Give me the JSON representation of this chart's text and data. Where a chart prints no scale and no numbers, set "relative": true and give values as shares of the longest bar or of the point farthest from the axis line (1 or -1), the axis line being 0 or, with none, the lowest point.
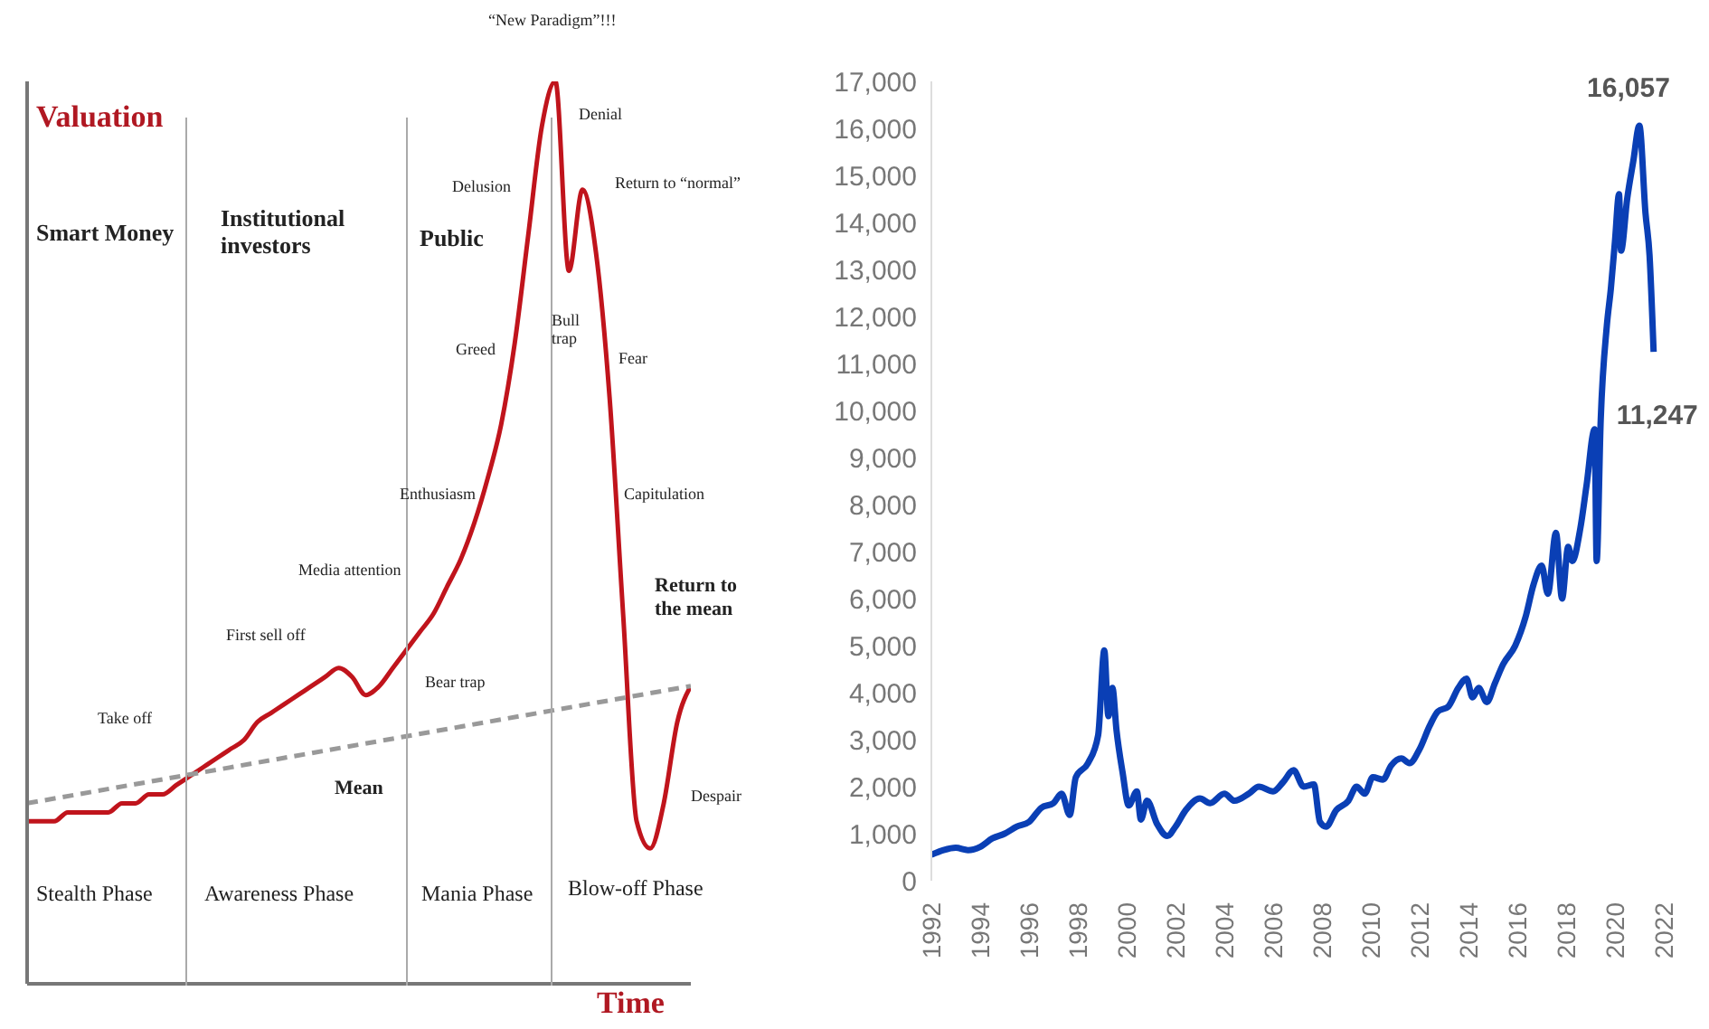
{
  "chart_data": [
    {
      "type": "line",
      "relative": true,
      "ylabel": "Valuation",
      "xlabel": "Time",
      "categories": [
        null,
        null,
        null,
        null,
        null,
        null,
        null,
        null,
        null,
        null,
        null,
        null,
        null,
        null,
        null,
        null,
        null,
        null,
        null,
        null,
        null,
        null,
        null,
        null,
        null,
        null,
        null,
        null,
        null,
        null,
        null,
        null,
        null,
        null,
        null,
        null,
        null,
        null,
        null,
        null,
        null,
        null,
        null,
        null,
        null,
        null,
        null,
        null,
        null,
        null
      ],
      "series": [
        {
          "color": "#c0141c",
          "values": [
            0.18,
            0.18,
            0.18,
            0.19,
            0.19,
            0.19,
            0.19,
            0.2,
            0.2,
            0.21,
            0.21,
            0.22,
            0.23,
            0.24,
            0.25,
            0.26,
            0.27,
            0.29,
            0.3,
            0.31,
            0.32,
            0.33,
            0.34,
            0.35,
            0.34,
            0.32,
            0.33,
            0.35,
            0.37,
            0.39,
            0.41,
            0.44,
            0.47,
            0.51,
            0.56,
            0.62,
            0.71,
            0.83,
            0.95,
            1,
            0.79,
            0.88,
            0.81,
            0.65,
            0.41,
            0.18,
            0.15,
            0.2,
            0.29,
            0.33
          ]
        },
        {
          "color": "#999999",
          "line_style": "dashed",
          "values": [
            0.2,
            null,
            null,
            null,
            null,
            null,
            null,
            null,
            null,
            null,
            null,
            null,
            null,
            null,
            null,
            null,
            null,
            null,
            null,
            null,
            null,
            null,
            null,
            null,
            null,
            null,
            null,
            null,
            null,
            null,
            null,
            null,
            null,
            null,
            null,
            null,
            null,
            null,
            null,
            null,
            null,
            null,
            null,
            null,
            null,
            null,
            null,
            null,
            null,
            0.33
          ]
        }
      ],
      "annotations": [
        "“New Paradigm”!!!",
        "Smart Money",
        "Institutional investors",
        "Public",
        "Delusion",
        "Denial",
        "Return to “normal”",
        "Greed",
        "Bull trap",
        "Fear",
        "Enthusiasm",
        "Capitulation",
        "Media attention",
        "First sell off",
        "Return to the mean",
        "Take off",
        "Bear trap",
        "Mean",
        "Despair",
        "Stealth Phase",
        "Awareness Phase",
        "Mania Phase",
        "Blow-off Phase"
      ]
    },
    {
      "type": "line",
      "xlim": [
        "1992",
        "2022"
      ],
      "xticks": [
        "1992",
        "1994",
        "1996",
        "1998",
        "2000",
        "2002",
        "2004",
        "2006",
        "2008",
        "2010",
        "2012",
        "2014",
        "2016",
        "2018",
        "2020",
        "2022"
      ],
      "ylim": [
        0,
        17000
      ],
      "yticks": [
        0,
        {
          "value": 1000,
          "label": "1,000"
        },
        {
          "value": 2000,
          "label": "2,000"
        },
        {
          "value": 3000,
          "label": "3,000"
        },
        {
          "value": 4000,
          "label": "4,000"
        },
        {
          "value": 5000,
          "label": "5,000"
        },
        {
          "value": 6000,
          "label": "6,000"
        },
        {
          "value": 7000,
          "label": "7,000"
        },
        {
          "value": 8000,
          "label": "8,000"
        },
        {
          "value": 9000,
          "label": "9,000"
        },
        {
          "value": 10000,
          "label": "10,000"
        },
        {
          "value": 11000,
          "label": "11,000"
        },
        {
          "value": 12000,
          "label": "12,000"
        },
        {
          "value": 13000,
          "label": "13,000"
        },
        {
          "value": 14000,
          "label": "14,000"
        },
        {
          "value": 15000,
          "label": "15,000"
        },
        {
          "value": 16000,
          "label": "16,000"
        },
        {
          "value": 17000,
          "label": "17,000"
        }
      ],
      "series": [
        {
          "color": "#0a3fb5",
          "x": [
            "1992-01",
            "1992-07",
            "1993-01",
            "1993-07",
            "1994-01",
            "1994-07",
            "1995-01",
            "1995-07",
            "1996-01",
            "1996-07",
            "1997-01",
            "1997-05",
            "1997-09",
            "1997-12",
            "1998-06",
            "1998-11",
            "1999-02",
            "1999-04",
            "1999-06",
            "1999-08",
            "1999-11",
            "2000-02",
            "2000-06",
            "2000-08",
            "2000-11",
            "2001-04",
            "2001-09",
            "2002-01",
            "2002-06",
            "2003-01",
            "2003-06",
            "2004-01",
            "2004-06",
            "2005-01",
            "2005-06",
            "2006-01",
            "2006-06",
            "2006-11",
            "2007-04",
            "2007-09",
            "2007-12",
            "2008-03",
            "2008-08",
            "2009-02",
            "2009-06",
            "2009-10",
            "2010-02",
            "2010-07",
            "2010-11",
            "2011-04",
            "2011-08",
            "2012-01",
            "2012-06",
            "2012-10",
            "2013-03",
            "2013-08",
            "2013-12",
            "2014-03",
            "2014-06",
            "2014-10",
            "2015-02",
            "2015-06",
            "2015-12",
            "2016-05",
            "2016-09",
            "2017-01",
            "2017-04",
            "2017-08",
            "2017-11",
            "2018-02",
            "2018-04",
            "2018-08",
            "2018-11",
            "2019-03",
            "2019-04",
            "2019-06",
            "2019-09",
            "2019-11",
            "2020-01",
            "2020-03",
            "2020-04",
            "2020-07",
            "2020-10",
            "2021-01",
            "2021-04",
            "2021-06",
            "2021-08"
          ],
          "values": [
            550,
            650,
            700,
            650,
            720,
            900,
            1000,
            1150,
            1250,
            1550,
            1650,
            1850,
            1400,
            2200,
            2500,
            3100,
            4900,
            3500,
            4100,
            3200,
            2300,
            1600,
            1900,
            1300,
            1700,
            1200,
            950,
            1150,
            1500,
            1750,
            1650,
            1850,
            1700,
            1850,
            2000,
            1900,
            2100,
            2350,
            2000,
            2050,
            1250,
            1150,
            1500,
            1700,
            2000,
            1850,
            2200,
            2150,
            2450,
            2600,
            2500,
            2800,
            3300,
            3600,
            3700,
            4100,
            4300,
            3900,
            4100,
            3800,
            4200,
            4600,
            5000,
            5600,
            6300,
            6700,
            6100,
            7400,
            6000,
            7100,
            6800,
            7500,
            8400,
            9600,
            6800,
            9800,
            11800,
            12600,
            13600,
            14600,
            13400,
            14500,
            15300,
            16057,
            14200,
            13300,
            11247
          ]
        }
      ],
      "annotations": [
        {
          "text": "16,057",
          "x": "2021-01",
          "y": 16057
        },
        {
          "text": "11,247",
          "x": "2021-08",
          "y": 11247
        }
      ]
    }
  ]
}
